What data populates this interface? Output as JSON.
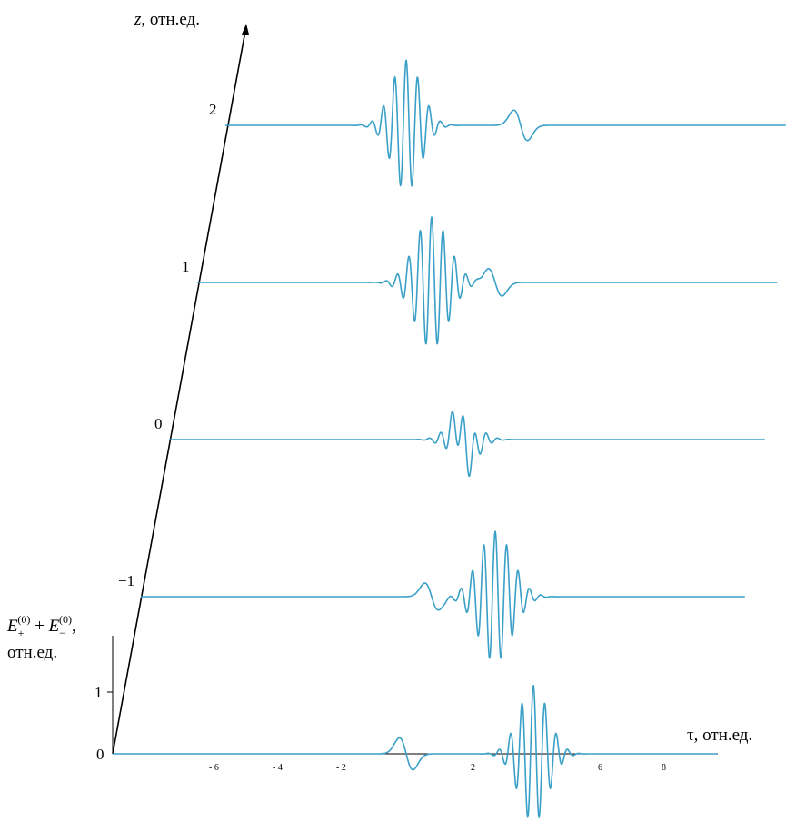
{
  "chart_data": {
    "type": "line",
    "colors": {
      "wave": "#3aa0c8",
      "axis": "#000000"
    },
    "z_axis": {
      "label_symbol": "z",
      "label_unit": ", отн.ед.",
      "ticks": [
        {
          "value": 2,
          "label": "2"
        },
        {
          "value": 1,
          "label": "1"
        },
        {
          "value": 0,
          "label": "0"
        },
        {
          "value": -1,
          "label": "−1"
        }
      ]
    },
    "tau_axis": {
      "label": "τ, отн.ед.",
      "range": [
        -9,
        10
      ],
      "ticks": [
        {
          "value": -6,
          "label": "- 6"
        },
        {
          "value": -4,
          "label": "- 4"
        },
        {
          "value": -2,
          "label": "- 2"
        },
        {
          "value": 2,
          "label": "2"
        },
        {
          "value": 6,
          "label": "6"
        },
        {
          "value": 8,
          "label": "8"
        }
      ]
    },
    "amplitude_axis": {
      "label_line1": {
        "base1": "E",
        "sub1": "+",
        "sup1": "(0)",
        "op": " + ",
        "base2": "E",
        "sub2": "−",
        "sup2": "(0)",
        "trail": ","
      },
      "label_line2": "отн.ед.",
      "ticks": [
        {
          "value": 0,
          "label": "0"
        },
        {
          "value": 1,
          "label": "1"
        }
      ]
    },
    "series": [
      {
        "z": -2,
        "single_pulse": {
          "tau": -1.8,
          "amplitude": 1.0
        },
        "packet": {
          "tau": 2.2,
          "amplitude": 1.05,
          "period": 0.36,
          "width": 0.65
        }
      },
      {
        "z": -1,
        "single_pulse": {
          "tau": -1.0,
          "amplitude": 0.85
        },
        "packet": {
          "tau": 1.0,
          "amplitude": 1.0,
          "period": 0.36,
          "width": 0.75
        }
      },
      {
        "z": 0,
        "single_pulse": {
          "tau": 0.0,
          "amplitude": 1.0
        },
        "packet": {
          "tau": 0.0,
          "amplitude": 0.35,
          "period": 0.36,
          "width": 0.65
        }
      },
      {
        "z": 1,
        "single_pulse": {
          "tau": 1.0,
          "amplitude": 0.85
        },
        "packet": {
          "tau": -1.0,
          "amplitude": 1.0,
          "period": 0.36,
          "width": 0.75
        }
      },
      {
        "z": 2,
        "single_pulse": {
          "tau": 1.8,
          "amplitude": 0.95
        },
        "packet": {
          "tau": -1.8,
          "amplitude": 1.0,
          "period": 0.36,
          "width": 0.65
        }
      }
    ]
  }
}
